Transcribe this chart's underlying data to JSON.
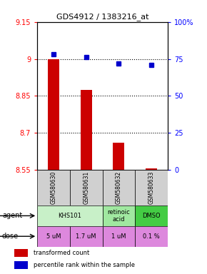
{
  "title": "GDS4912 / 1383216_at",
  "samples": [
    "GSM580630",
    "GSM580631",
    "GSM580632",
    "GSM580633"
  ],
  "bar_values": [
    9.0,
    8.875,
    8.66,
    8.557
  ],
  "bar_base": 8.55,
  "percentile_values": [
    78,
    76,
    72,
    71
  ],
  "ylim_left": [
    8.55,
    9.15
  ],
  "ylim_right": [
    0,
    100
  ],
  "yticks_left": [
    8.55,
    8.7,
    8.85,
    9.0,
    9.15
  ],
  "ytick_labels_left": [
    "8.55",
    "8.7",
    "8.85",
    "9",
    "9.15"
  ],
  "yticks_right": [
    0,
    25,
    50,
    75,
    100
  ],
  "ytick_labels_right": [
    "0",
    "25",
    "50",
    "75",
    "100%"
  ],
  "hlines": [
    9.0,
    8.85,
    8.7
  ],
  "bar_color": "#cc0000",
  "dot_color": "#0000cc",
  "dose_labels": [
    "5 uM",
    "1.7 uM",
    "1 uM",
    "0.1 %"
  ],
  "dose_color": "#dd88dd",
  "sample_bg": "#d0d0d0",
  "agent_groups": [
    {
      "cols": [
        0,
        1
      ],
      "label": "KHS101",
      "color": "#c8f0c8"
    },
    {
      "cols": [
        2
      ],
      "label": "retinoic\nacid",
      "color": "#a0e8a0"
    },
    {
      "cols": [
        3
      ],
      "label": "DMSO",
      "color": "#44cc44"
    }
  ],
  "legend_bar_color": "#cc0000",
  "legend_dot_color": "#0000cc",
  "legend_bar_label": "transformed count",
  "legend_dot_label": "percentile rank within the sample"
}
